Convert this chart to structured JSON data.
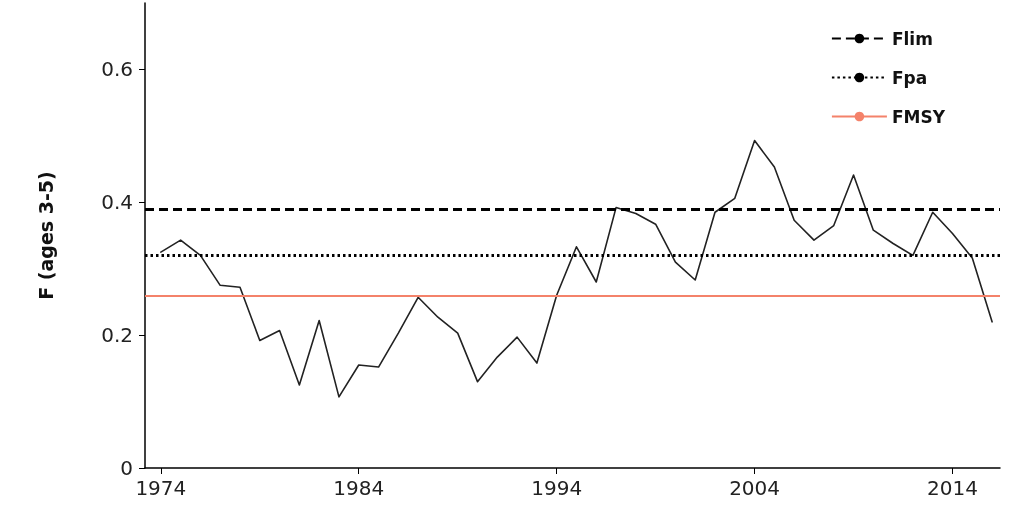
{
  "chart_data": {
    "type": "line",
    "ylabel": "F (ages 3-5)",
    "x": [
      1974,
      1975,
      1976,
      1977,
      1978,
      1979,
      1980,
      1981,
      1982,
      1983,
      1984,
      1985,
      1986,
      1987,
      1988,
      1989,
      1990,
      1991,
      1992,
      1993,
      1994,
      1995,
      1996,
      1997,
      1998,
      1999,
      2000,
      2001,
      2002,
      2003,
      2004,
      2005,
      2006,
      2007,
      2008,
      2009,
      2010,
      2011,
      2012,
      2013,
      2014,
      2015,
      2016
    ],
    "series": [
      {
        "color": "#222222",
        "values": [
          0.325,
          0.343,
          0.32,
          0.275,
          0.272,
          0.192,
          0.207,
          0.125,
          0.222,
          0.107,
          0.155,
          0.152,
          0.203,
          0.257,
          0.227,
          0.203,
          0.13,
          0.167,
          0.197,
          0.158,
          0.26,
          0.333,
          0.28,
          0.392,
          0.383,
          0.367,
          0.31,
          0.283,
          0.385,
          0.406,
          0.493,
          0.453,
          0.373,
          0.343,
          0.365,
          0.441,
          0.358,
          0.338,
          0.32,
          0.385,
          0.353,
          0.316,
          0.22
        ]
      }
    ],
    "xlim": [
      1973.2,
      2016.4
    ],
    "xticks": [
      1974,
      1984,
      1994,
      2004,
      2014
    ],
    "ylim": [
      0,
      0.7
    ],
    "yticks": [
      0,
      0.2,
      0.4,
      0.6
    ],
    "ref_lines": [
      {
        "axis": "y",
        "value": 0.39,
        "label": "Flim",
        "color": "#000000",
        "line_style": "dashed"
      },
      {
        "axis": "y",
        "value": 0.32,
        "label": "Fpa",
        "color": "#000000",
        "line_style": "dotted"
      },
      {
        "axis": "y",
        "value": 0.26,
        "label": "FMSY",
        "color": "#f4826a",
        "line_style": "solid"
      }
    ],
    "grid": false,
    "legend": "top right",
    "marker": "none",
    "line_style": "solid"
  }
}
